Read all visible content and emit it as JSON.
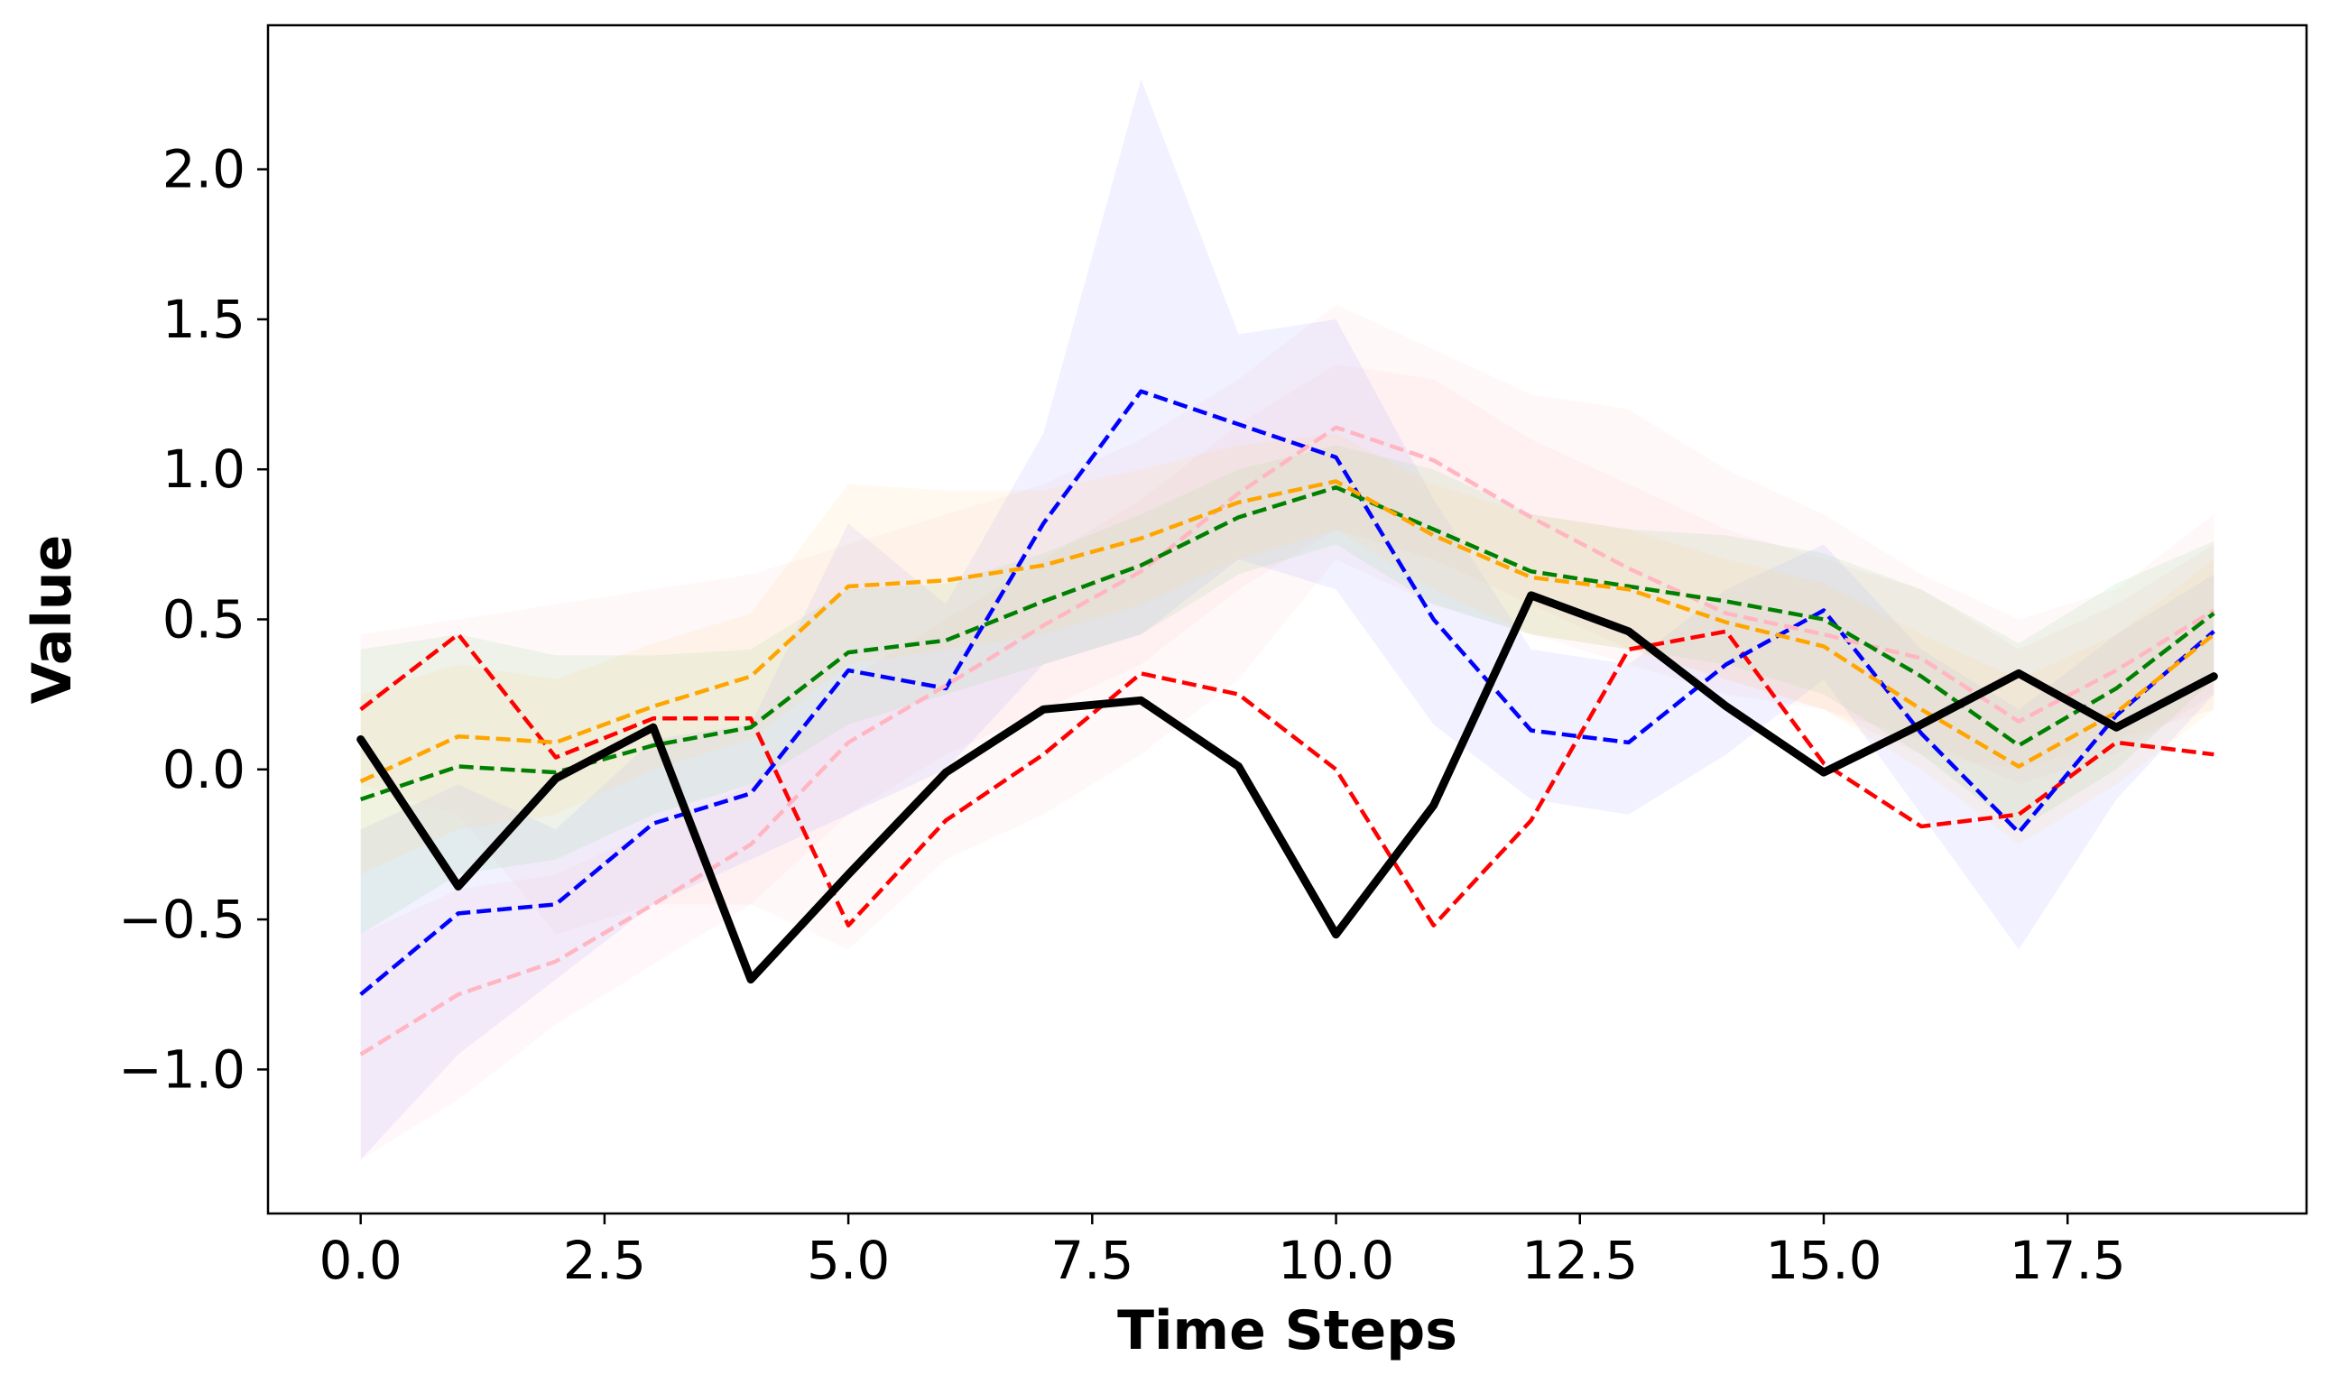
{
  "chart_data": {
    "type": "line",
    "title": "",
    "xlabel": "Time Steps",
    "ylabel": "Value",
    "xlim": [
      -0.95,
      19.95
    ],
    "ylim": [
      -1.48,
      2.48
    ],
    "xticks": [
      0.0,
      2.5,
      5.0,
      7.5,
      10.0,
      12.5,
      15.0,
      17.5
    ],
    "xtick_labels": [
      "0.0",
      "2.5",
      "5.0",
      "7.5",
      "10.0",
      "12.5",
      "15.0",
      "17.5"
    ],
    "yticks": [
      -1.0,
      -0.5,
      0.0,
      0.5,
      1.0,
      1.5,
      2.0
    ],
    "ytick_labels": [
      "−1.0",
      "−0.5",
      "0.0",
      "0.5",
      "1.0",
      "1.5",
      "2.0"
    ],
    "grid": false,
    "x": [
      0,
      1,
      2,
      3,
      4,
      5,
      6,
      7,
      8,
      9,
      10,
      11,
      12,
      13,
      14,
      15,
      16,
      17,
      18,
      19
    ],
    "series": [
      {
        "name": "red",
        "color": "#ff0000",
        "style": "dashed",
        "values": [
          0.2,
          0.45,
          0.04,
          0.17,
          0.17,
          -0.52,
          -0.17,
          0.05,
          0.32,
          0.25,
          0.0,
          -0.52,
          -0.17,
          0.4,
          0.46,
          0.02,
          -0.19,
          -0.15,
          0.09,
          0.05
        ],
        "band_lower": [
          -0.05,
          -0.15,
          -0.55,
          -0.45,
          -0.45,
          -0.6,
          -0.3,
          -0.15,
          0.05,
          0.3,
          0.7,
          0.55,
          0.45,
          0.35,
          0.25,
          0.2,
          0.05,
          0.0,
          0.1,
          0.2
        ],
        "band_upper": [
          0.45,
          0.5,
          0.55,
          0.6,
          0.65,
          0.75,
          0.85,
          0.95,
          1.1,
          1.3,
          1.55,
          1.4,
          1.25,
          1.2,
          1.0,
          0.85,
          0.65,
          0.5,
          0.6,
          0.85
        ],
        "band_color": "#ffa0a0",
        "band_opacity": 0.08
      },
      {
        "name": "blue",
        "color": "#0000ff",
        "style": "dashed",
        "values": [
          -0.75,
          -0.48,
          -0.45,
          -0.18,
          -0.08,
          0.33,
          0.27,
          0.82,
          1.26,
          1.15,
          1.04,
          0.5,
          0.13,
          0.09,
          0.35,
          0.53,
          0.12,
          -0.21,
          0.18,
          0.46
        ],
        "band_lower": [
          -1.3,
          -0.95,
          -0.7,
          -0.45,
          -0.3,
          -0.15,
          0.0,
          0.35,
          0.45,
          0.7,
          0.6,
          0.15,
          -0.1,
          -0.15,
          0.05,
          0.3,
          -0.15,
          -0.6,
          -0.1,
          0.25
        ],
        "band_upper": [
          -0.2,
          -0.05,
          -0.2,
          0.1,
          0.15,
          0.82,
          0.55,
          1.12,
          2.3,
          1.45,
          1.5,
          0.9,
          0.4,
          0.35,
          0.6,
          0.75,
          0.4,
          0.2,
          0.45,
          0.65
        ],
        "band_color": "#b0b0ff",
        "band_opacity": 0.18
      },
      {
        "name": "pink",
        "color": "#ffb6c1",
        "style": "dashed",
        "values": [
          -0.95,
          -0.75,
          -0.64,
          -0.45,
          -0.25,
          0.09,
          0.28,
          0.48,
          0.66,
          0.92,
          1.14,
          1.03,
          0.84,
          0.67,
          0.52,
          0.45,
          0.37,
          0.16,
          0.33,
          0.53
        ],
        "band_lower": [
          -1.3,
          -1.1,
          -0.85,
          -0.65,
          -0.45,
          -0.15,
          0.05,
          0.2,
          0.35,
          0.6,
          0.8,
          0.7,
          0.55,
          0.4,
          0.3,
          0.2,
          0.1,
          -0.05,
          0.05,
          0.25
        ],
        "band_upper": [
          -0.55,
          -0.4,
          -0.35,
          -0.2,
          -0.05,
          0.3,
          0.5,
          0.7,
          0.9,
          1.15,
          1.35,
          1.3,
          1.1,
          0.95,
          0.8,
          0.7,
          0.6,
          0.4,
          0.55,
          0.75
        ],
        "band_color": "#ffc0cb",
        "band_opacity": 0.12
      },
      {
        "name": "green",
        "color": "#008000",
        "style": "dashed",
        "values": [
          -0.1,
          0.01,
          -0.01,
          0.08,
          0.14,
          0.39,
          0.43,
          0.56,
          0.68,
          0.84,
          0.94,
          0.8,
          0.66,
          0.61,
          0.56,
          0.5,
          0.31,
          0.08,
          0.27,
          0.52
        ],
        "band_lower": [
          -0.55,
          -0.35,
          -0.3,
          -0.15,
          -0.05,
          0.15,
          0.25,
          0.35,
          0.45,
          0.65,
          0.75,
          0.55,
          0.45,
          0.4,
          0.35,
          0.25,
          0.05,
          -0.2,
          0.0,
          0.3
        ],
        "band_upper": [
          0.4,
          0.45,
          0.38,
          0.38,
          0.4,
          0.6,
          0.62,
          0.72,
          0.85,
          1.0,
          1.08,
          1.0,
          0.85,
          0.8,
          0.78,
          0.72,
          0.6,
          0.42,
          0.62,
          0.76
        ],
        "band_color": "#a0d8a0",
        "band_opacity": 0.18
      },
      {
        "name": "orange",
        "color": "#ffa500",
        "style": "dashed",
        "values": [
          -0.04,
          0.11,
          0.09,
          0.21,
          0.31,
          0.61,
          0.63,
          0.68,
          0.77,
          0.89,
          0.96,
          0.78,
          0.64,
          0.6,
          0.49,
          0.41,
          0.2,
          0.01,
          0.19,
          0.45
        ],
        "band_lower": [
          -0.35,
          -0.2,
          -0.15,
          0.0,
          0.1,
          0.35,
          0.4,
          0.45,
          0.55,
          0.7,
          0.8,
          0.6,
          0.45,
          0.4,
          0.3,
          0.2,
          0.0,
          -0.25,
          -0.05,
          0.2
        ],
        "band_upper": [
          0.25,
          0.35,
          0.3,
          0.42,
          0.52,
          0.95,
          0.93,
          0.93,
          1.0,
          1.08,
          1.12,
          0.95,
          0.85,
          0.8,
          0.7,
          0.62,
          0.45,
          0.3,
          0.45,
          0.7
        ],
        "band_color": "#ffd890",
        "band_opacity": 0.14
      },
      {
        "name": "black",
        "color": "#000000",
        "style": "solid",
        "values": [
          0.1,
          -0.39,
          -0.03,
          0.14,
          -0.7,
          -0.35,
          -0.01,
          0.2,
          0.23,
          0.01,
          -0.55,
          -0.12,
          0.58,
          0.46,
          0.21,
          -0.01,
          0.15,
          0.32,
          0.14,
          0.31
        ]
      }
    ]
  }
}
